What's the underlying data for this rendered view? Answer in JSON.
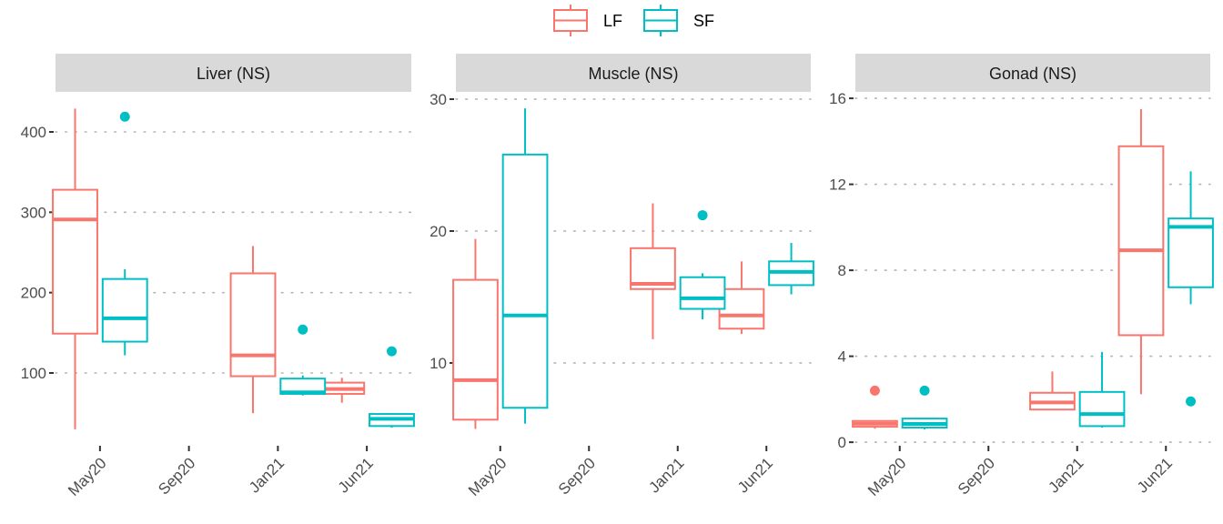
{
  "chart_data": {
    "type": "boxplot",
    "layout": "faceted, 3 panels in a row, free y scales",
    "legend": {
      "position": "top",
      "entries": [
        {
          "name": "LF",
          "color": "#F8766D"
        },
        {
          "name": "SF",
          "color": "#00BFC4"
        }
      ]
    },
    "grid": "horizontal major gridlines, dotted",
    "categories": [
      "May20",
      "Sep20",
      "Jan21",
      "Jun21"
    ],
    "panels": [
      {
        "title": "Liver (NS)",
        "ylim": [
          11.7,
          449.8
        ],
        "yticks": [
          100,
          200,
          300,
          400
        ],
        "ytick_labels": [
          "100",
          "200",
          "300",
          "400"
        ],
        "series": [
          {
            "name": "LF",
            "boxes": [
              {
                "category": "May20",
                "min": 30,
                "q1": 149,
                "median": 291,
                "q3": 328,
                "max": 429,
                "outliers": []
              },
              {
                "category": "Jan21",
                "min": 50,
                "q1": 96,
                "median": 122,
                "q3": 224,
                "max": 258,
                "outliers": []
              },
              {
                "category": "Jun21",
                "min": 63,
                "q1": 74,
                "median": 80,
                "q3": 88,
                "max": 94,
                "outliers": []
              }
            ]
          },
          {
            "name": "SF",
            "boxes": [
              {
                "category": "May20",
                "min": 122,
                "q1": 139,
                "median": 168,
                "q3": 217,
                "max": 229,
                "outliers": [
                  419
                ]
              },
              {
                "category": "Jan21",
                "min": 72,
                "q1": 74,
                "median": 76,
                "q3": 93,
                "max": 97,
                "outliers": [
                  154
                ]
              },
              {
                "category": "Jun21",
                "min": 32,
                "q1": 34,
                "median": 43,
                "q3": 49,
                "max": 50,
                "outliers": [
                  127
                ]
              }
            ]
          }
        ]
      },
      {
        "title": "Muscle (NS)",
        "ylim": [
          3.86,
          30.55
        ],
        "yticks": [
          10,
          20,
          30
        ],
        "ytick_labels": [
          "10",
          "20",
          "30"
        ],
        "series": [
          {
            "name": "LF",
            "boxes": [
              {
                "category": "May20",
                "min": 5.0,
                "q1": 5.7,
                "median": 8.7,
                "q3": 16.3,
                "max": 19.4,
                "outliers": []
              },
              {
                "category": "Jan21",
                "min": 11.8,
                "q1": 15.6,
                "median": 16.0,
                "q3": 18.7,
                "max": 22.1,
                "outliers": []
              },
              {
                "category": "Jun21",
                "min": 12.2,
                "q1": 12.6,
                "median": 13.6,
                "q3": 15.6,
                "max": 17.7,
                "outliers": []
              }
            ]
          },
          {
            "name": "SF",
            "boxes": [
              {
                "category": "May20",
                "min": 5.4,
                "q1": 6.6,
                "median": 13.6,
                "q3": 25.8,
                "max": 29.3,
                "outliers": []
              },
              {
                "category": "Jan21",
                "min": 13.3,
                "q1": 14.1,
                "median": 14.9,
                "q3": 16.5,
                "max": 16.8,
                "outliers": [
                  21.2
                ]
              },
              {
                "category": "Jun21",
                "min": 15.2,
                "q1": 15.9,
                "median": 16.9,
                "q3": 17.7,
                "max": 19.1,
                "outliers": []
              }
            ]
          }
        ]
      },
      {
        "title": "Gonad (NS)",
        "ylim": [
          -0.08,
          16.3
        ],
        "yticks": [
          0,
          4,
          8,
          12,
          16
        ],
        "ytick_labels": [
          "0",
          "4",
          "8",
          "12",
          "16"
        ],
        "series": [
          {
            "name": "LF",
            "boxes": [
              {
                "category": "May20",
                "min": 0.63,
                "q1": 0.72,
                "median": 0.86,
                "q3": 0.99,
                "max": 0.99,
                "outliers": [
                  2.4
                ]
              },
              {
                "category": "Jan21",
                "min": 1.52,
                "q1": 1.52,
                "median": 1.85,
                "q3": 2.3,
                "max": 3.29,
                "outliers": []
              },
              {
                "category": "Jun21",
                "min": 2.23,
                "q1": 4.98,
                "median": 8.93,
                "q3": 13.77,
                "max": 15.5,
                "outliers": []
              }
            ]
          },
          {
            "name": "SF",
            "boxes": [
              {
                "category": "May20",
                "min": 0.59,
                "q1": 0.68,
                "median": 0.85,
                "q3": 1.1,
                "max": 1.13,
                "outliers": [
                  2.4
                ]
              },
              {
                "category": "Jan21",
                "min": 0.68,
                "q1": 0.75,
                "median": 1.31,
                "q3": 2.34,
                "max": 4.2,
                "outliers": []
              },
              {
                "category": "Jun21",
                "min": 6.42,
                "q1": 7.21,
                "median": 10.02,
                "q3": 10.41,
                "max": 12.6,
                "outliers": [
                  1.9
                ]
              }
            ]
          }
        ]
      }
    ]
  }
}
